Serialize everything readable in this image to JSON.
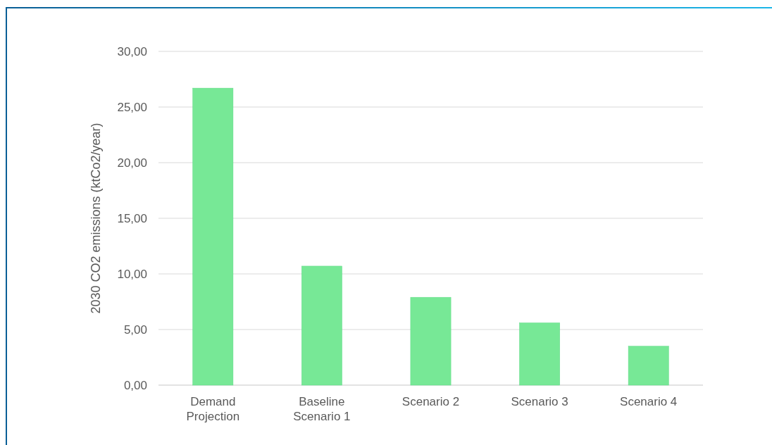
{
  "chart_data": {
    "type": "bar",
    "ylabel": "2030 CO2 emissions (ktCo2/year)",
    "categories": [
      "Demand Projection",
      "Baseline Scenario 1",
      "Scenario 2",
      "Scenario 3",
      "Scenario 4"
    ],
    "values": [
      26.7,
      10.7,
      7.9,
      5.6,
      3.5
    ],
    "color": "#77e896",
    "ylim": [
      0,
      30
    ],
    "yticks": [
      {
        "value": 0,
        "label": "0,00"
      },
      {
        "value": 5,
        "label": "5,00"
      },
      {
        "value": 10,
        "label": "10,00"
      },
      {
        "value": 15,
        "label": "15,00"
      },
      {
        "value": 20,
        "label": "20,00"
      },
      {
        "value": 25,
        "label": "25,00"
      },
      {
        "value": 30,
        "label": "30,00"
      }
    ],
    "grid": "y"
  }
}
